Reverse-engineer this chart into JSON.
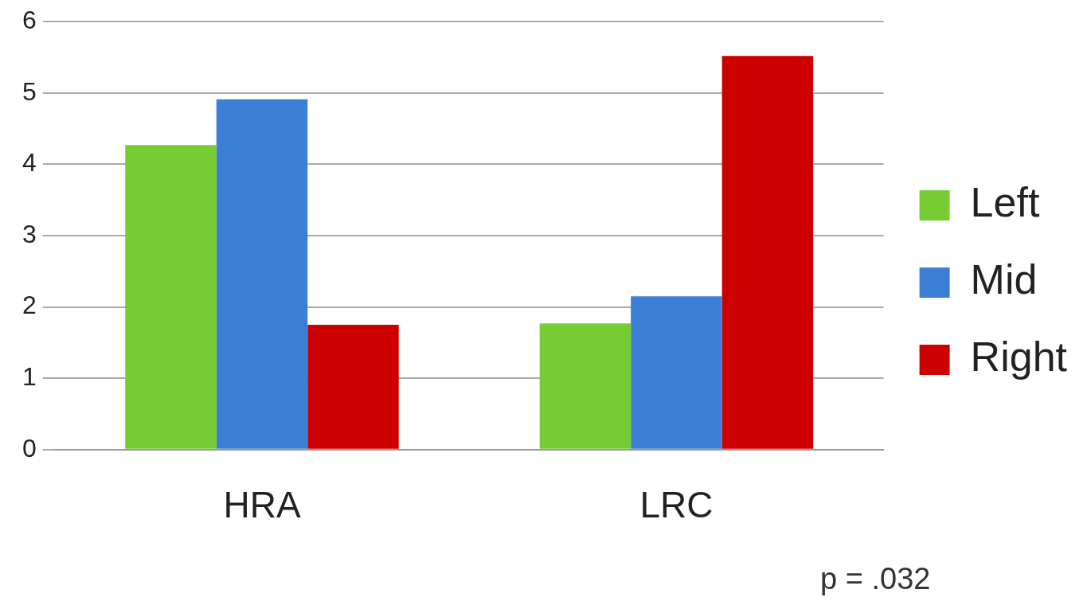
{
  "chart_data": {
    "type": "bar",
    "categories": [
      "HRA",
      "LRC"
    ],
    "series": [
      {
        "name": "Left",
        "color": "#77cc33",
        "values": [
          4.27,
          1.77
        ]
      },
      {
        "name": "Mid",
        "color": "#3a7fd5",
        "values": [
          4.91,
          2.15
        ]
      },
      {
        "name": "Right",
        "color": "#cc0000",
        "values": [
          1.75,
          5.52
        ]
      }
    ],
    "ylim": [
      0,
      6
    ],
    "yticks": [
      0,
      1,
      2,
      3,
      4,
      5,
      6
    ],
    "grid": "y",
    "legend": "right",
    "annotations": [
      "p = .032"
    ]
  }
}
